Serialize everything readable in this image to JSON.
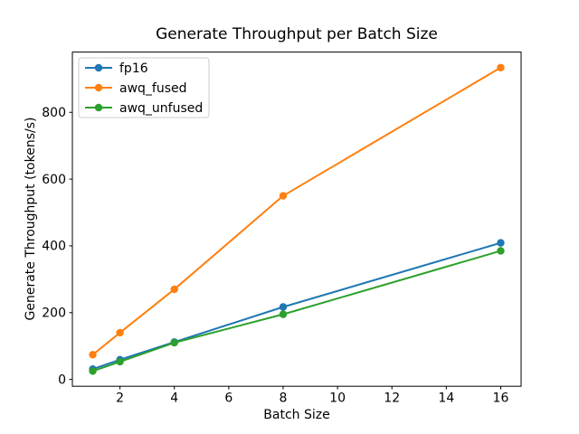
{
  "figure": {
    "background": "#ffffff"
  },
  "chart_data": {
    "type": "line",
    "title": "Generate Throughput per Batch Size",
    "xlabel": "Batch Size",
    "ylabel": "Generate Throughput (tokens/s)",
    "x": [
      1,
      2,
      4,
      8,
      16
    ],
    "series": [
      {
        "name": "fp16",
        "color": "#1f77b4",
        "marker": "circle",
        "values": [
          31,
          59,
          112,
          217,
          409
        ]
      },
      {
        "name": "awq_fused",
        "color": "#ff7f0e",
        "marker": "circle",
        "values": [
          74,
          140,
          270,
          550,
          934
        ]
      },
      {
        "name": "awq_unfused",
        "color": "#2ca02c",
        "marker": "circle",
        "values": [
          25,
          53,
          110,
          195,
          385
        ]
      }
    ],
    "xlim": [
      0.25,
      16.75
    ],
    "ylim": [
      -20.5,
      980.5
    ],
    "xticks": [
      2,
      4,
      6,
      8,
      10,
      12,
      14,
      16
    ],
    "yticks": [
      0,
      200,
      400,
      600,
      800
    ],
    "grid": false,
    "legend": {
      "position": "upper left",
      "entries": [
        "fp16",
        "awq_fused",
        "awq_unfused"
      ]
    },
    "axis_color": "#000000",
    "text_color": "#000000",
    "legend_border_color": "#cccccc"
  }
}
